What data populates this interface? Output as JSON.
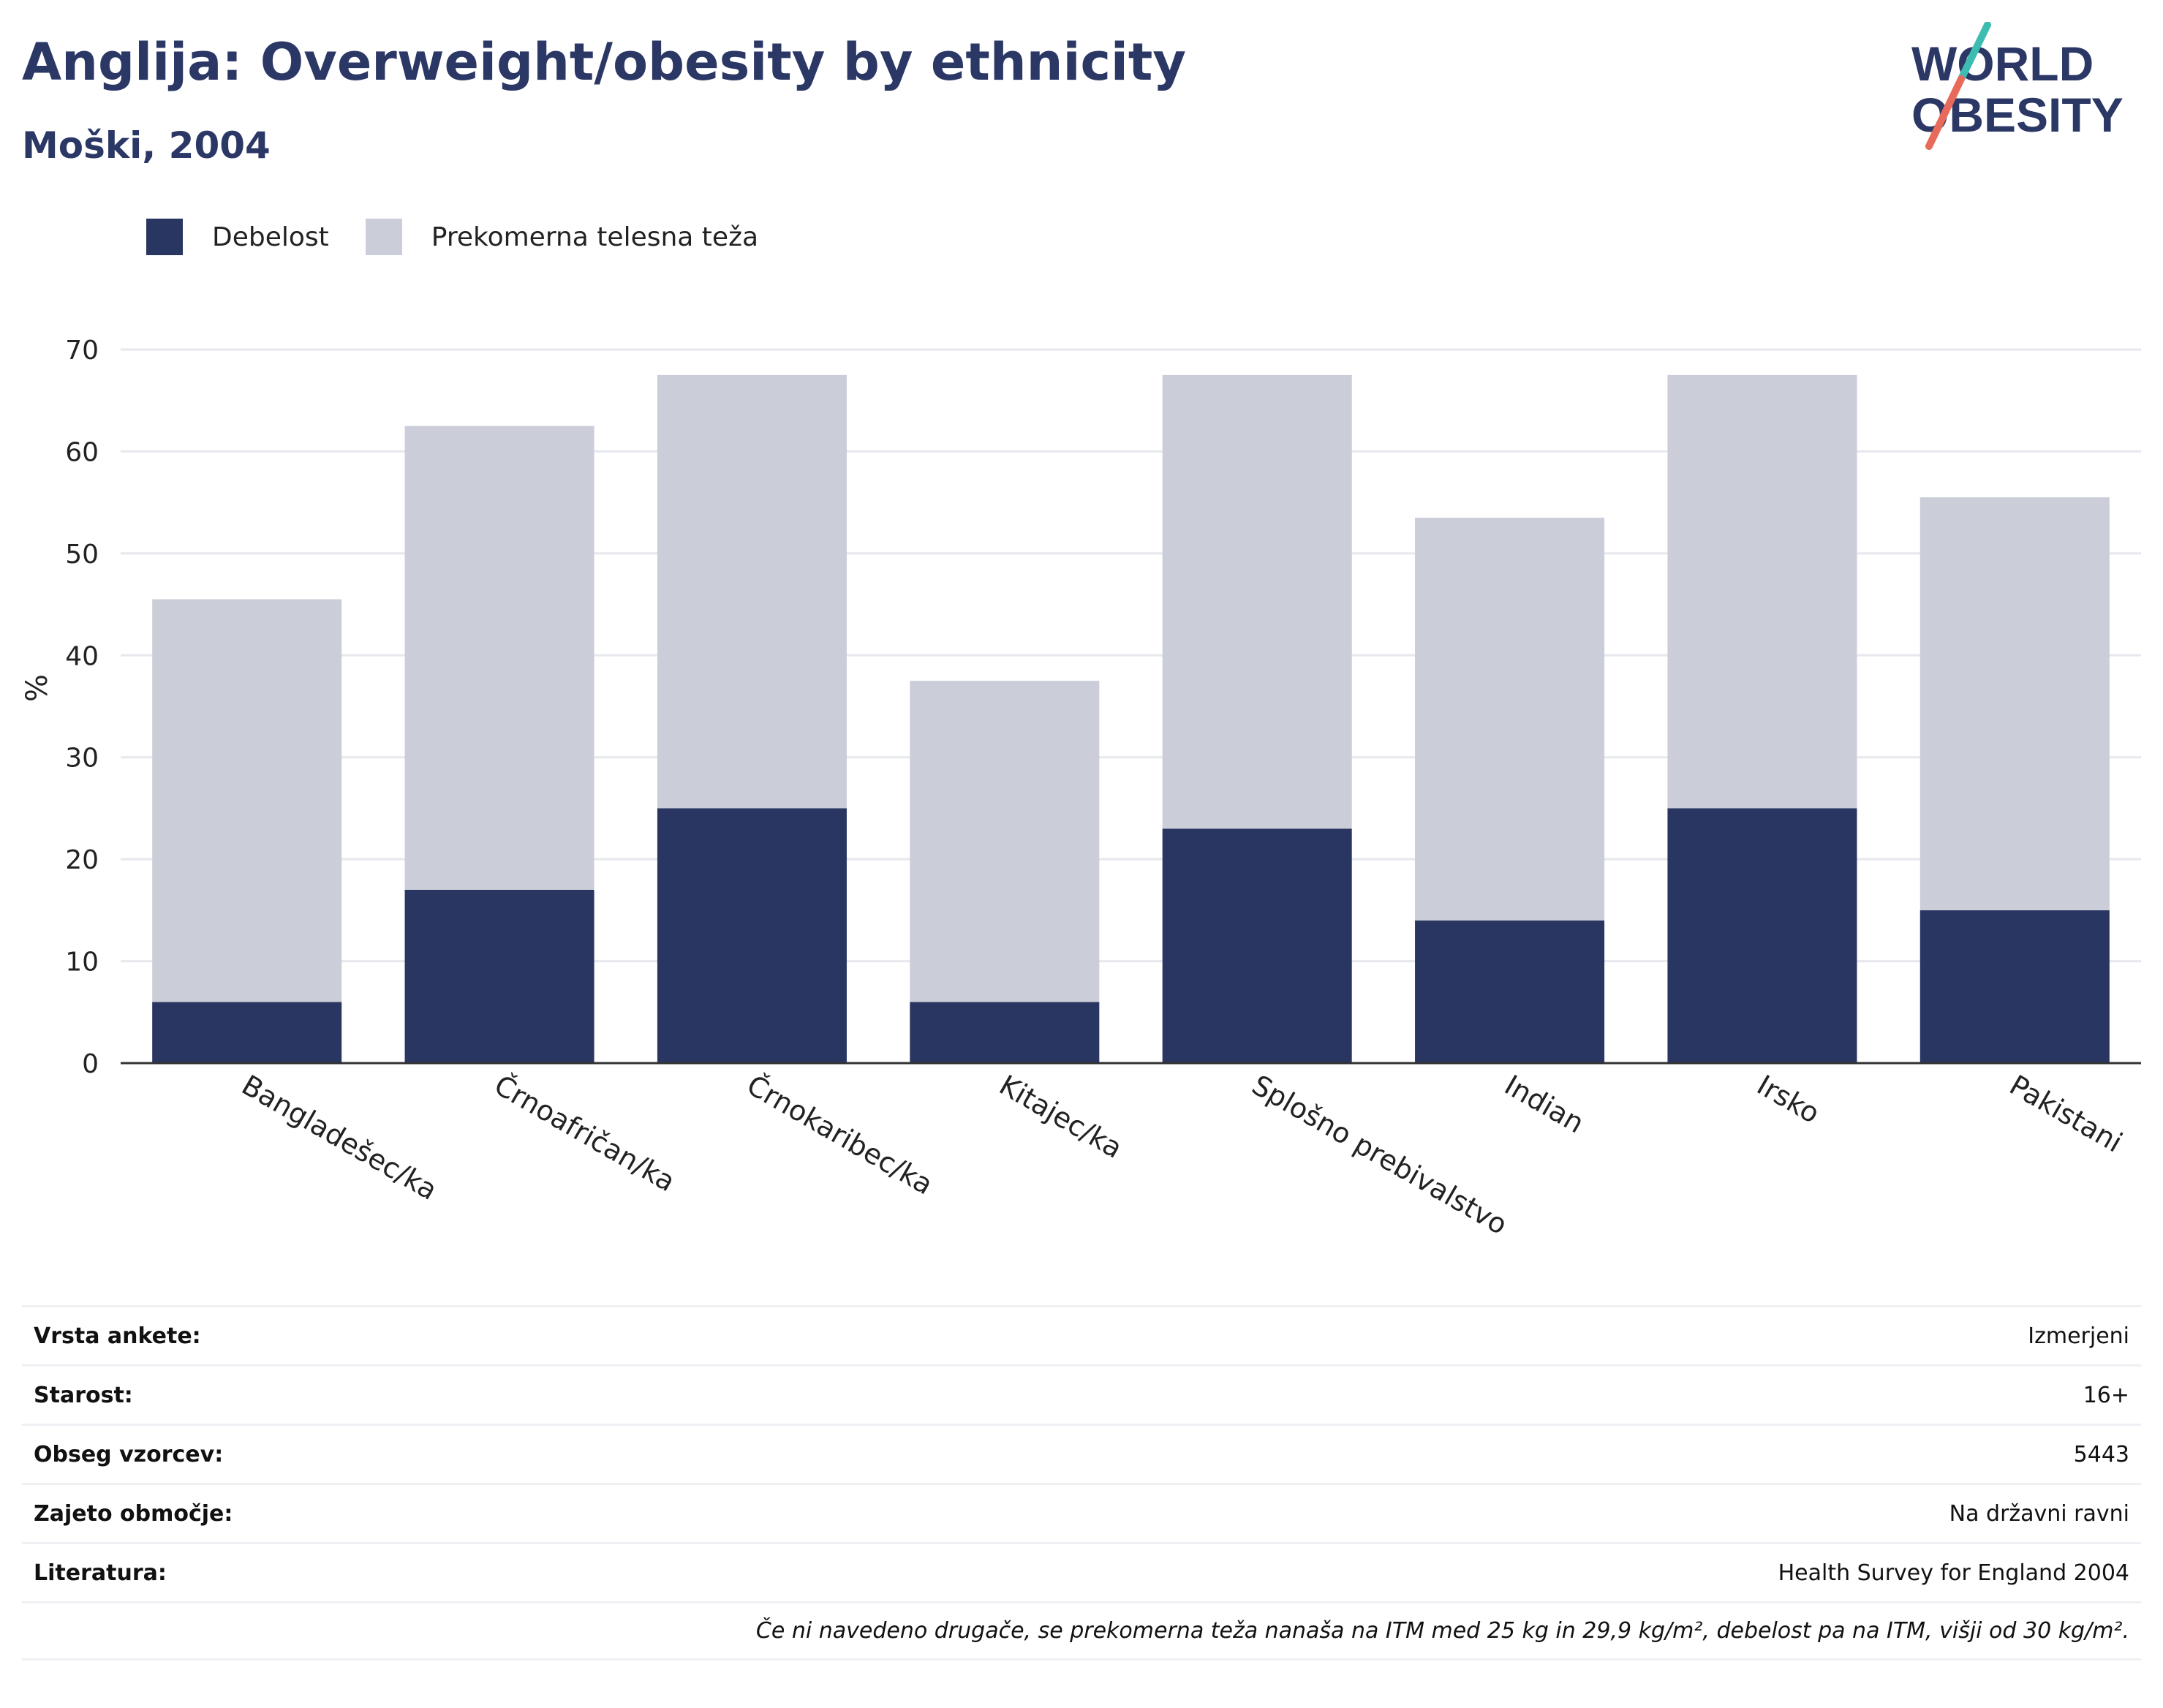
{
  "header": {
    "title": "Anglija: Overweight/obesity by ethnicity",
    "subtitle": "Moški, 2004"
  },
  "logo": {
    "line1": "WORLD",
    "line2": "OBESITY"
  },
  "colors": {
    "obesity": "#2a3662",
    "overweight": "#cbcdd8",
    "brand_teal": "#3dbdb1",
    "brand_red": "#e86a5a"
  },
  "chart_data": {
    "type": "bar",
    "stacked": true,
    "ylabel": "%",
    "xlabel": "",
    "ylim": [
      0,
      70
    ],
    "yticks": [
      0,
      10,
      20,
      30,
      40,
      50,
      60,
      70
    ],
    "grid": true,
    "legend_position": "top-left",
    "categories": [
      "Bangladešec/ka",
      "Črnoafričan/ka",
      "Črnokaribec/ka",
      "Kitajec/ka",
      "Splošno prebivalstvo",
      "Indian",
      "Irsko",
      "Pakistani"
    ],
    "series": [
      {
        "name": "Debelost",
        "values": [
          6,
          17,
          25,
          6,
          23,
          14,
          25,
          15
        ]
      },
      {
        "name": "Prekomerna telesna teža",
        "values": [
          39.5,
          45.5,
          42.5,
          31.5,
          44.5,
          39.5,
          42.5,
          40.5
        ]
      }
    ]
  },
  "info": {
    "rows": [
      {
        "label": "Vrsta ankete:",
        "value": "Izmerjeni"
      },
      {
        "label": "Starost:",
        "value": "16+"
      },
      {
        "label": "Obseg vzorcev:",
        "value": "5443"
      },
      {
        "label": "Zajeto območje:",
        "value": "Na državni ravni"
      },
      {
        "label": "Literatura:",
        "value": "Health Survey for England 2004"
      }
    ],
    "note": "Če ni navedeno drugače, se prekomerna teža nanaša na ITM med 25 kg in 29,9 kg/m², debelost pa na ITM, višji od 30 kg/m²."
  }
}
